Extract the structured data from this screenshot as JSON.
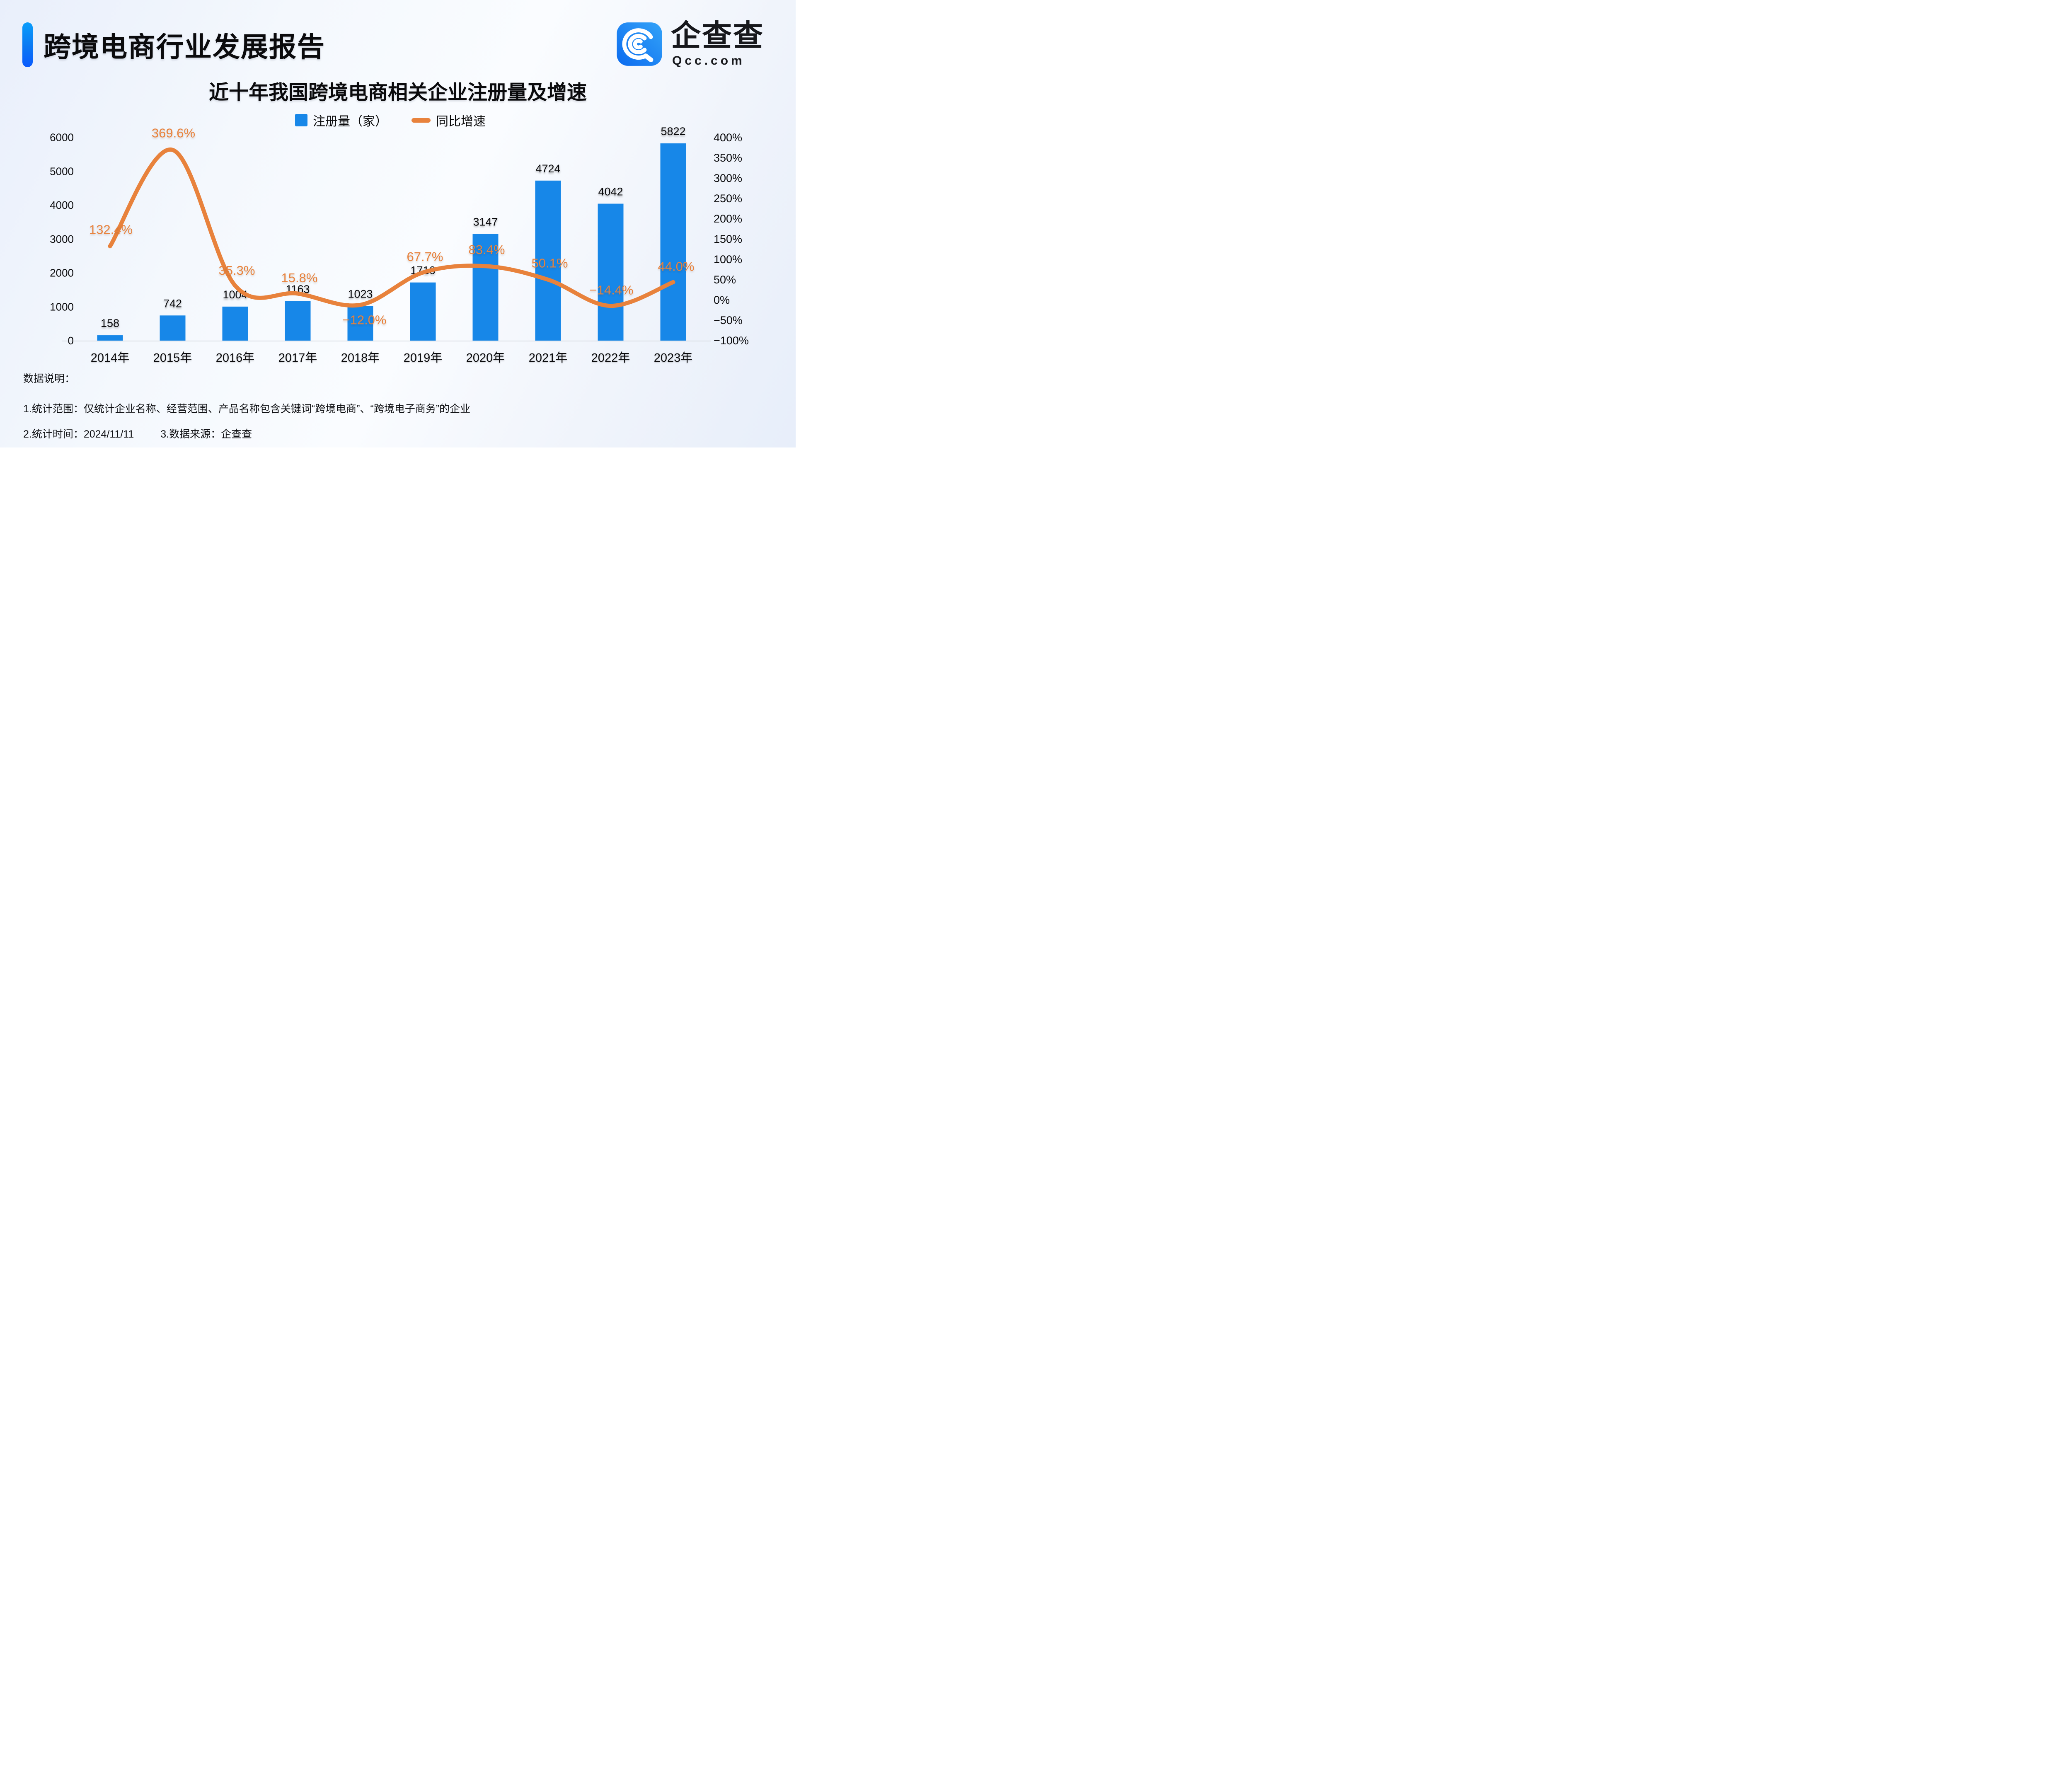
{
  "header": {
    "report_title": "跨境电商行业发展报告",
    "brand_name": "企查查",
    "brand_domain": "Qcc.com"
  },
  "chart_data": {
    "type": "bar+line",
    "title": "近十年我国跨境电商相关企业注册量及增速",
    "categories": [
      "2014年",
      "2015年",
      "2016年",
      "2017年",
      "2018年",
      "2019年",
      "2020年",
      "2021年",
      "2022年",
      "2023年"
    ],
    "series": [
      {
        "name": "注册量（家）",
        "type": "bar",
        "axis": "left",
        "values": [
          158,
          742,
          1004,
          1163,
          1023,
          1716,
          3147,
          4724,
          4042,
          5822
        ],
        "value_labels": [
          "158",
          "742",
          "1004",
          "1163",
          "1023",
          "1716",
          "3147",
          "4724",
          "4042",
          "5822"
        ]
      },
      {
        "name": "同比增速",
        "type": "line",
        "axis": "right",
        "values_pct": [
          132.4,
          369.6,
          35.3,
          15.8,
          -12.0,
          67.7,
          83.4,
          50.1,
          -14.4,
          44.0
        ],
        "point_labels": [
          "132.4%",
          "369.6%",
          "35.3%",
          "15.8%",
          "−12.0%",
          "67.7%",
          "83.4%",
          "50.1%",
          "−14.4%",
          "44.0%"
        ]
      }
    ],
    "left_axis": {
      "ticks": [
        6000,
        5000,
        4000,
        3000,
        2000,
        1000,
        0
      ],
      "range": [
        0,
        6000
      ]
    },
    "right_axis": {
      "tick_values": [
        400,
        350,
        300,
        250,
        200,
        150,
        100,
        50,
        0,
        -50,
        -100
      ],
      "tick_labels": [
        "400%",
        "350%",
        "300%",
        "250%",
        "200%",
        "150%",
        "100%",
        "50%",
        "0%",
        "−50%",
        "−100%"
      ],
      "range_pct": [
        -100,
        400
      ]
    },
    "grid": false,
    "legend_position": "top-center"
  },
  "notes": {
    "heading": "数据说明：",
    "line1": "1.统计范围：仅统计企业名称、经营范围、产品名称包含关键词“跨境电商”、“跨境电子商务”的企业",
    "line2_time": "2.统计时间：2024/11/11",
    "line2_source": "3.数据来源：企查查"
  },
  "colors": {
    "bar": "#1787E8",
    "line": "#E8823C",
    "axis_line": "#D8DCE2",
    "accent_top": "#0A9DFB",
    "accent_bottom": "#0B5BFE",
    "logo_dark": "#0C6BEF",
    "logo_light": "#33A3F8",
    "text": "#0B0B0D"
  }
}
